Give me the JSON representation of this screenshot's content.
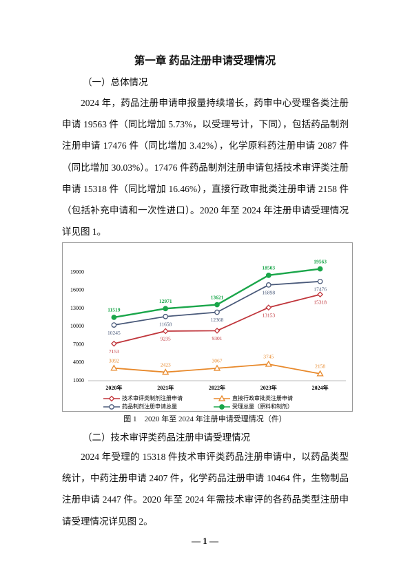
{
  "title": "第一章 药品注册申请受理情况",
  "sections": [
    {
      "heading": "（一）总体情况",
      "paragraph": "2024 年，药品注册申请申报量持续增长，药审中心受理各类注册申请 19563 件（同比增加 5.73%，以受理号计，下同），包括药品制剂注册申请 17476 件（同比增加 3.42%），化学原料药注册申请 2087 件（同比增加 30.03%）。17476 件药品制剂注册申请包括技术审评类注册申请 15318 件（同比增加 16.46%），直接行政审批类注册申请 2158 件（包括补充申请和一次性进口）。2020 年至 2024 年注册申请受理情况详见图 1。"
    },
    {
      "heading": "（二）技术审评类药品注册申请受理情况",
      "paragraph": "2024 年受理的 15318 件技术审评类药品注册申请中，以药品类型统计，中药注册申请 2407 件，化学药品注册申请 10464 件，生物制品注册申请 2447 件。2020 年至 2024 年需技术审评的各药品类型注册申请受理情况详见图 2。"
    }
  ],
  "caption": "图 1　2020 年至 2024 年注册申请受理情况（件）",
  "page_number": "— 1 —",
  "chart_data": {
    "type": "line",
    "categories": [
      "2020年",
      "2021年",
      "2022年",
      "2023年",
      "2024年"
    ],
    "series": [
      {
        "name": "技术审评类制剂注册申请",
        "color": "#c0363c",
        "marker": "diamond",
        "values": [
          7153,
          9235,
          9301,
          13153,
          15318
        ]
      },
      {
        "name": "直接行政审批类注册申请",
        "color": "#e8892b",
        "marker": "triangle",
        "values": [
          3092,
          2423,
          3067,
          3745,
          2158
        ]
      },
      {
        "name": "药品制剂注册申请总量",
        "color": "#4a5a7a",
        "marker": "circle",
        "values": [
          10245,
          11658,
          12368,
          16898,
          17476
        ]
      },
      {
        "name": "受理总量（原料和制剂）",
        "color": "#1aa64a",
        "marker": "dot",
        "values": [
          11519,
          12971,
          13621,
          18503,
          19563
        ]
      }
    ],
    "ylim": [
      1000,
      21000
    ],
    "yticks": [
      1000,
      4000,
      7000,
      10000,
      13000,
      16000,
      19000
    ],
    "grid": false,
    "legend": "bottom-left"
  }
}
